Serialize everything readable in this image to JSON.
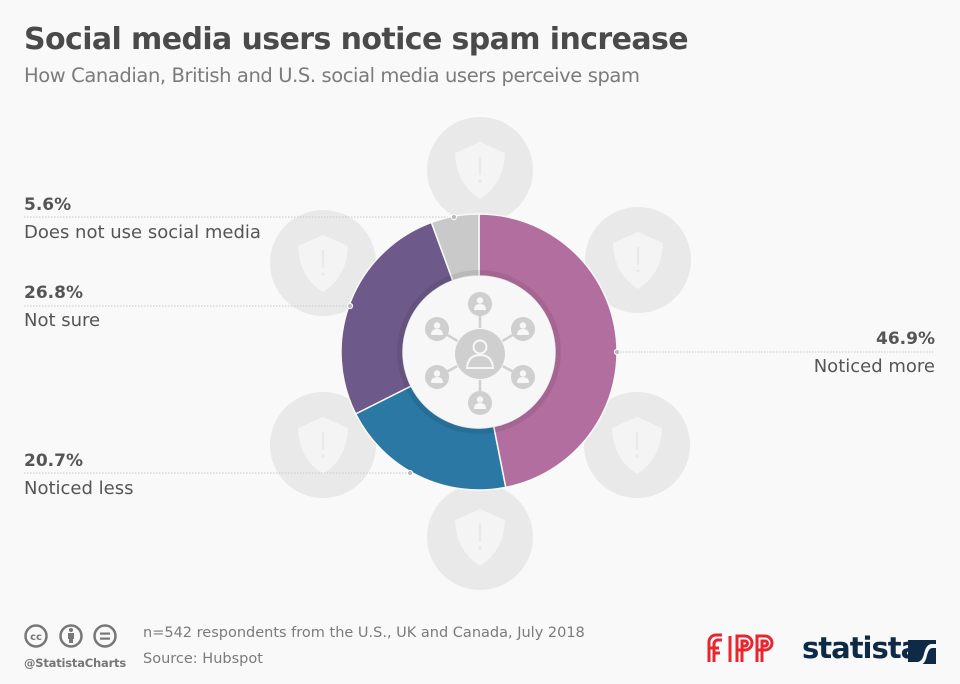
{
  "header": {
    "title": "Social media users notice spam increase",
    "subtitle": "How Canadian, British and U.S. social media users perceive spam"
  },
  "chart_data": {
    "type": "pie",
    "variant": "donut",
    "title": "Social media users notice spam increase",
    "subtitle": "How Canadian, British and U.S. social media users perceive spam",
    "unit": "%",
    "start": "top",
    "direction": "clockwise",
    "slices": [
      {
        "label": "Noticed more",
        "value": 46.9,
        "display": "46.9%",
        "color": "#b26e9f"
      },
      {
        "label": "Noticed less",
        "value": 20.7,
        "display": "20.7%",
        "color": "#2a78a3"
      },
      {
        "label": "Not sure",
        "value": 26.8,
        "display": "26.8%",
        "color": "#6d5a8a"
      },
      {
        "label": "Does not use social media",
        "value": 5.6,
        "display": "5.6%",
        "color": "#c9c9c9"
      }
    ],
    "center_icon": "social-network-icon",
    "background_icons": "shield-warning-icon"
  },
  "footer": {
    "note": "n=542 respondents from the U.S., UK and Canada, July 2018",
    "source": "Source: Hubspot",
    "handle": "@StatistaCharts",
    "license_icons": [
      "cc-icon",
      "attribution-icon",
      "no-derivatives-icon"
    ],
    "license_labels": [
      "cc",
      "i",
      "="
    ],
    "brands": [
      "FIPP",
      "statista"
    ]
  },
  "colors": {
    "background": "#f9f9f9",
    "decor_circle": "#e9e9e9",
    "fipp_red": "#e8262f",
    "statista_navy": "#0e2a47"
  }
}
